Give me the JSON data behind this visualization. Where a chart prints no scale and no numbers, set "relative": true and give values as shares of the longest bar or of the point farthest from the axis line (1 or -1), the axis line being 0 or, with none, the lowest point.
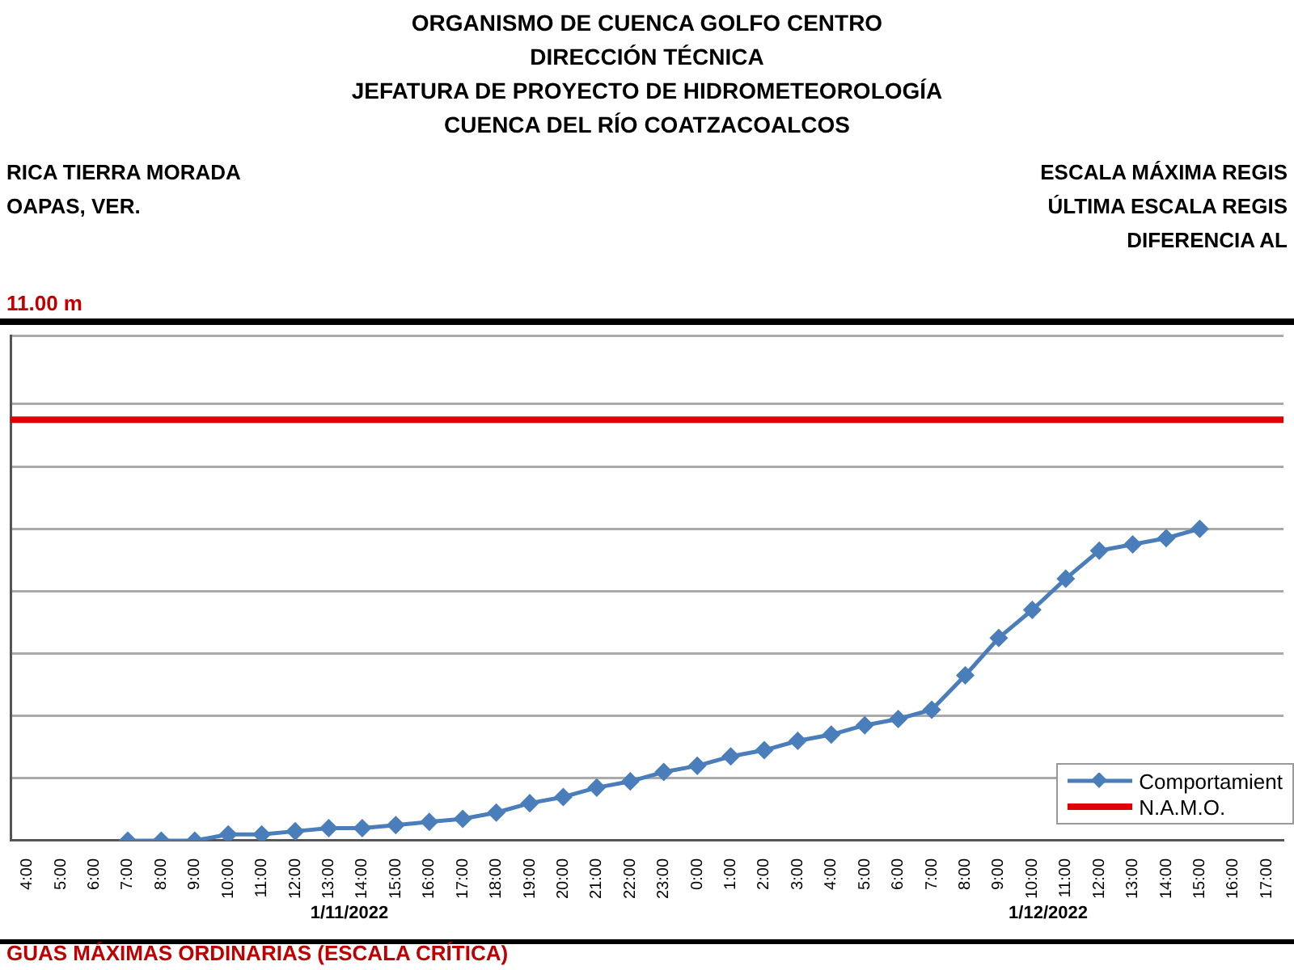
{
  "chart_data": {
    "type": "line",
    "title": "ORGANISMO DE CUENCA GOLFO CENTRO\nDIRECCIÓN TÉCNICA\nJEFATURA DE PROYECTO DE HIDROMETEOROLOGÍA\nCUENCA DEL RÍO COATZACOALCOS",
    "subtitle": "RICA TIERRA MORADA\nOAPAS, VER.",
    "annotations": [
      "ESCALA MÁXIMA REGIS",
      "ÚLTIMA ESCALA REGIS",
      "DIFERENCIA AL",
      "11.00 m",
      "1/11/2022",
      "1/12/2022",
      "GUAS MÁXIMAS ORDINARIAS (ESCALA CRÍTICA)"
    ],
    "categories": [
      "4:00",
      "5:00",
      "6:00",
      "7:00",
      "8:00",
      "9:00",
      "10:00",
      "11:00",
      "12:00",
      "13:00",
      "14:00",
      "15:00",
      "16:00",
      "17:00",
      "18:00",
      "19:00",
      "20:00",
      "21:00",
      "22:00",
      "23:00",
      "0:00",
      "1:00",
      "2:00",
      "3:00",
      "4:00",
      "5:00",
      "6:00",
      "7:00",
      "8:00",
      "9:00",
      "10:00",
      "11:00",
      "12:00",
      "13:00",
      "14:00",
      "15:00",
      "16:00",
      "17:00"
    ],
    "relative": true,
    "series": [
      {
        "name": "Comportamient",
        "color": "#4a7ebb",
        "values": [
          null,
          null,
          null,
          0,
          0.0,
          0.0,
          0.02,
          0.02,
          0.03,
          0.04,
          0.04,
          0.05,
          0.06,
          0.07,
          0.09,
          0.12,
          0.14,
          0.17,
          0.19,
          0.22,
          0.24,
          0.27,
          0.29,
          0.32,
          0.34,
          0.37,
          0.39,
          0.42,
          0.53,
          0.65,
          0.74,
          0.84,
          0.93,
          0.95,
          0.97,
          1,
          null,
          null
        ]
      }
    ],
    "ref_lines": [
      {
        "axis": "y",
        "value": 1.35,
        "label": "N.A.M.O.",
        "color": "#e00000"
      }
    ],
    "marker": "diamond",
    "line_style": "solid",
    "grid": "y",
    "legend": "bottom right"
  }
}
